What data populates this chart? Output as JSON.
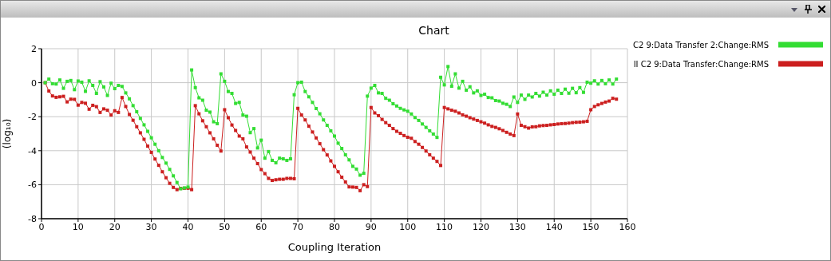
{
  "chart_data": {
    "type": "line",
    "title": "Chart",
    "xlabel": "Coupling Iteration",
    "ylabel": "(log₁₀)",
    "x": [
      1,
      2,
      3,
      4,
      5,
      6,
      7,
      8,
      9,
      10,
      11,
      12,
      13,
      14,
      15,
      16,
      17,
      18,
      19,
      20,
      21,
      22,
      23,
      24,
      25,
      26,
      27,
      28,
      29,
      30,
      31,
      32,
      33,
      34,
      35,
      36,
      37,
      38,
      39,
      40,
      41,
      42,
      43,
      44,
      45,
      46,
      47,
      48,
      49,
      50,
      51,
      52,
      53,
      54,
      55,
      56,
      57,
      58,
      59,
      60,
      61,
      62,
      63,
      64,
      65,
      66,
      67,
      68,
      69,
      70,
      71,
      72,
      73,
      74,
      75,
      76,
      77,
      78,
      79,
      80,
      81,
      82,
      83,
      84,
      85,
      86,
      87,
      88,
      89,
      90,
      91,
      92,
      93,
      94,
      95,
      96,
      97,
      98,
      99,
      100,
      101,
      102,
      103,
      104,
      105,
      106,
      107,
      108,
      109,
      110,
      111,
      112,
      113,
      114,
      115,
      116,
      117,
      118,
      119,
      120,
      121,
      122,
      123,
      124,
      125,
      126,
      127,
      128,
      129,
      130,
      131,
      132,
      133,
      134,
      135,
      136,
      137,
      138,
      139,
      140,
      141,
      142,
      143,
      144,
      145,
      146,
      147,
      148,
      149,
      150,
      151,
      152,
      153,
      154,
      155,
      156,
      157
    ],
    "series": [
      {
        "name": "II C2 9:Data Transfer:Change:RMS",
        "color": "#cc1f1f",
        "values": [
          0,
          -0.49,
          -0.78,
          -0.86,
          -0.83,
          -0.8,
          -1.13,
          -0.97,
          -0.98,
          -1.32,
          -1.16,
          -1.21,
          -1.56,
          -1.33,
          -1.41,
          -1.75,
          -1.54,
          -1.62,
          -1.9,
          -1.65,
          -1.75,
          -0.87,
          -1.4,
          -1.87,
          -2.21,
          -2.59,
          -2.95,
          -3.33,
          -3.73,
          -4.1,
          -4.49,
          -4.86,
          -5.24,
          -5.59,
          -5.92,
          -6.16,
          -6.29,
          -6.22,
          -6.21,
          -6.21,
          -6.29,
          -1.35,
          -1.83,
          -2.24,
          -2.59,
          -2.95,
          -3.3,
          -3.68,
          -4.02,
          -1.59,
          -2.06,
          -2.49,
          -2.81,
          -3.14,
          -3.3,
          -3.78,
          -4.08,
          -4.44,
          -4.76,
          -5.11,
          -5.35,
          -5.63,
          -5.75,
          -5.71,
          -5.68,
          -5.68,
          -5.63,
          -5.63,
          -5.65,
          -1.51,
          -1.9,
          -2.19,
          -2.56,
          -2.9,
          -3.25,
          -3.59,
          -3.94,
          -4.25,
          -4.6,
          -4.92,
          -5.24,
          -5.56,
          -5.84,
          -6.13,
          -6.14,
          -6.16,
          -6.35,
          -6.0,
          -6.11,
          -1.46,
          -1.78,
          -1.94,
          -2.16,
          -2.35,
          -2.51,
          -2.7,
          -2.86,
          -2.98,
          -3.11,
          -3.21,
          -3.27,
          -3.46,
          -3.62,
          -3.81,
          -4.02,
          -4.24,
          -4.44,
          -4.63,
          -4.87,
          -1.46,
          -1.54,
          -1.62,
          -1.68,
          -1.78,
          -1.89,
          -1.97,
          -2.06,
          -2.14,
          -2.22,
          -2.3,
          -2.38,
          -2.48,
          -2.57,
          -2.63,
          -2.71,
          -2.81,
          -2.92,
          -3.02,
          -3.11,
          -1.84,
          -2.51,
          -2.59,
          -2.67,
          -2.6,
          -2.59,
          -2.54,
          -2.52,
          -2.51,
          -2.48,
          -2.46,
          -2.43,
          -2.41,
          -2.4,
          -2.38,
          -2.35,
          -2.33,
          -2.32,
          -2.3,
          -2.27,
          -1.59,
          -1.4,
          -1.3,
          -1.22,
          -1.14,
          -1.08,
          -0.92,
          -0.97
        ]
      },
      {
        "name": "C2 9:Data Transfer 2:Change:RMS",
        "color": "#33dd33",
        "values": [
          0,
          0.21,
          -0.06,
          -0.08,
          0.16,
          -0.33,
          0.08,
          0.13,
          -0.41,
          0.1,
          0.03,
          -0.51,
          0.11,
          -0.16,
          -0.63,
          0.06,
          -0.25,
          -0.75,
          -0.03,
          -0.35,
          -0.16,
          -0.22,
          -0.6,
          -0.95,
          -1.35,
          -1.71,
          -2.1,
          -2.48,
          -2.86,
          -3.24,
          -3.62,
          -4.0,
          -4.4,
          -4.73,
          -5.1,
          -5.48,
          -5.87,
          -6.24,
          -6.19,
          -6.14,
          0.75,
          -0.29,
          -0.89,
          -1.03,
          -1.62,
          -1.73,
          -2.3,
          -2.41,
          0.52,
          0.08,
          -0.52,
          -0.63,
          -1.22,
          -1.16,
          -1.9,
          -1.97,
          -2.94,
          -2.7,
          -3.84,
          -3.38,
          -4.44,
          -4.05,
          -4.57,
          -4.71,
          -4.44,
          -4.48,
          -4.57,
          -4.48,
          -0.71,
          0,
          0.03,
          -0.52,
          -0.83,
          -1.16,
          -1.52,
          -1.83,
          -2.19,
          -2.51,
          -2.83,
          -3.14,
          -3.56,
          -3.87,
          -4.24,
          -4.54,
          -4.92,
          -5.08,
          -5.44,
          -5.33,
          -0.79,
          -0.32,
          -0.16,
          -0.6,
          -0.63,
          -0.92,
          -1.03,
          -1.24,
          -1.37,
          -1.51,
          -1.6,
          -1.68,
          -1.84,
          -2.05,
          -2.22,
          -2.43,
          -2.63,
          -2.83,
          -3.02,
          -3.22,
          0.32,
          -0.13,
          0.95,
          -0.21,
          0.52,
          -0.32,
          0.08,
          -0.44,
          -0.24,
          -0.6,
          -0.48,
          -0.75,
          -0.68,
          -0.87,
          -0.89,
          -1.05,
          -1.08,
          -1.21,
          -1.27,
          -1.4,
          -0.84,
          -1.16,
          -0.73,
          -0.98,
          -0.73,
          -0.84,
          -0.63,
          -0.79,
          -0.56,
          -0.73,
          -0.48,
          -0.68,
          -0.44,
          -0.63,
          -0.38,
          -0.62,
          -0.33,
          -0.59,
          -0.29,
          -0.57,
          0.03,
          -0.03,
          0.11,
          -0.08,
          0.13,
          -0.06,
          0.16,
          -0.08,
          0.21
        ]
      }
    ],
    "xlim": [
      0,
      160
    ],
    "xticks": [
      0,
      10,
      20,
      30,
      40,
      50,
      60,
      70,
      80,
      90,
      100,
      110,
      120,
      130,
      140,
      150,
      160
    ],
    "ylim": [
      -8,
      2
    ],
    "yticks": [
      -8,
      -6,
      -4,
      -2,
      0,
      2
    ],
    "grid": true,
    "legend": "top right",
    "marker": "square",
    "line_style": "solid"
  }
}
